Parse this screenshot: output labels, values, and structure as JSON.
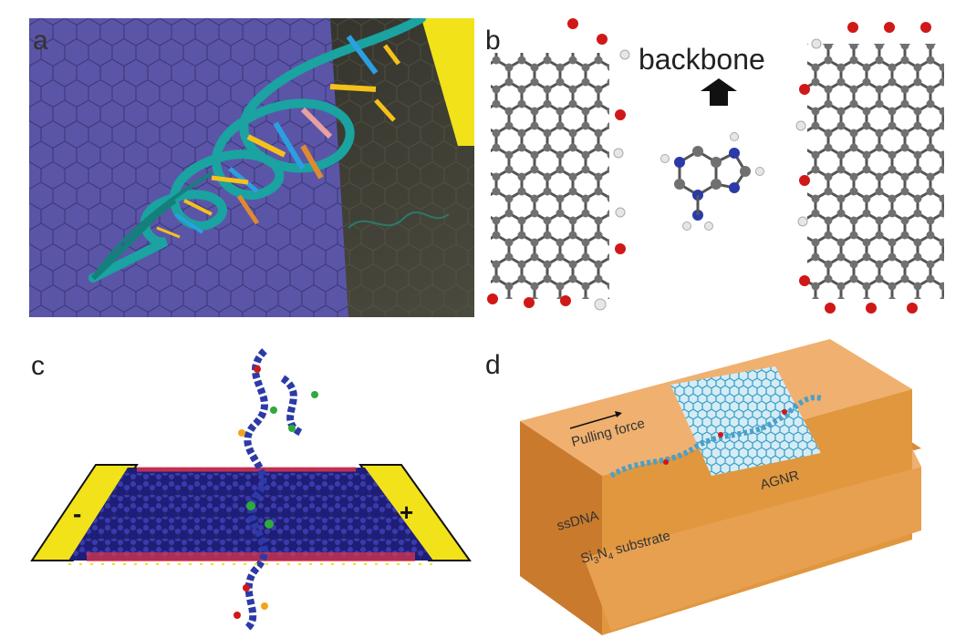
{
  "panels": {
    "a": {
      "label": "a"
    },
    "b": {
      "label": "b",
      "annotation": "backbone"
    },
    "c": {
      "label": "c",
      "minus_sign": "-",
      "plus_sign": "+"
    },
    "d": {
      "label": "d",
      "pulling_force": "Pulling force",
      "ssdna": "ssDNA",
      "agnr": "AGNR",
      "substrate_prefix": "Si",
      "sub3": "3",
      "n": "N",
      "sub4": "4",
      "substrate_suffix": " substrate"
    }
  },
  "colors": {
    "graphene_sheet": "#5b55a8",
    "dna_backbone": "#1aa3a0",
    "electrode": "#f2e21a",
    "carbon_atom": "#6e6e6e",
    "oxygen_atom": "#d01818",
    "hydrogen_atom": "#e6e6e6",
    "nitrogen_atom": "#2b3aa8",
    "substrate": "#e0973e",
    "pulling_current": "#e8364a"
  },
  "icons": [
    "up-arrow-icon",
    "pulling-force-arrow-icon"
  ]
}
